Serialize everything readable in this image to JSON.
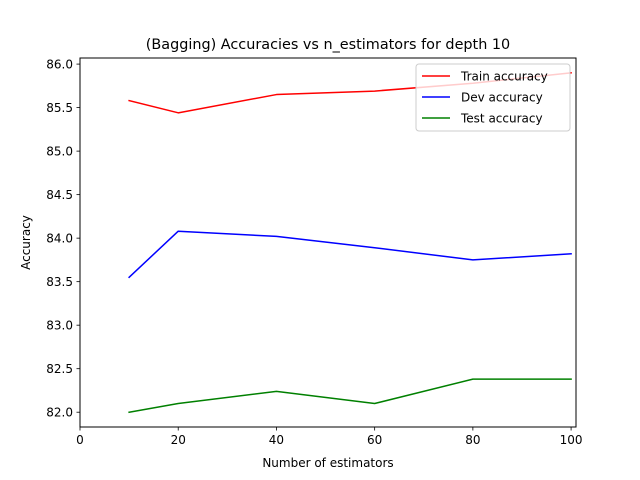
{
  "chart_data": {
    "type": "line",
    "title": "(Bagging) Accuracies vs n_estimators for depth 10",
    "xlabel": "Number of estimators",
    "ylabel": "Accuracy",
    "xlim": [
      0,
      101
    ],
    "ylim": [
      81.83,
      86.07
    ],
    "xticks": [
      0,
      20,
      40,
      60,
      80,
      100
    ],
    "yticks": [
      82.0,
      82.5,
      83.0,
      83.5,
      84.0,
      84.5,
      85.0,
      85.5,
      86.0
    ],
    "ytick_labels": [
      "82.0",
      "82.5",
      "83.0",
      "83.5",
      "84.0",
      "84.5",
      "85.0",
      "85.5",
      "86.0"
    ],
    "grid": false,
    "legend_position": "top-right",
    "x": [
      10,
      20,
      40,
      60,
      80,
      100
    ],
    "series": [
      {
        "name": "Train accuracy",
        "color": "#ff0000",
        "values": [
          85.58,
          85.44,
          85.65,
          85.69,
          85.78,
          85.9
        ]
      },
      {
        "name": "Dev accuracy",
        "color": "#0000ff",
        "values": [
          83.55,
          84.08,
          84.02,
          83.89,
          83.75,
          83.82
        ]
      },
      {
        "name": "Test accuracy",
        "color": "#008000",
        "values": [
          82.0,
          82.1,
          82.24,
          82.1,
          82.38,
          82.38
        ]
      }
    ]
  }
}
